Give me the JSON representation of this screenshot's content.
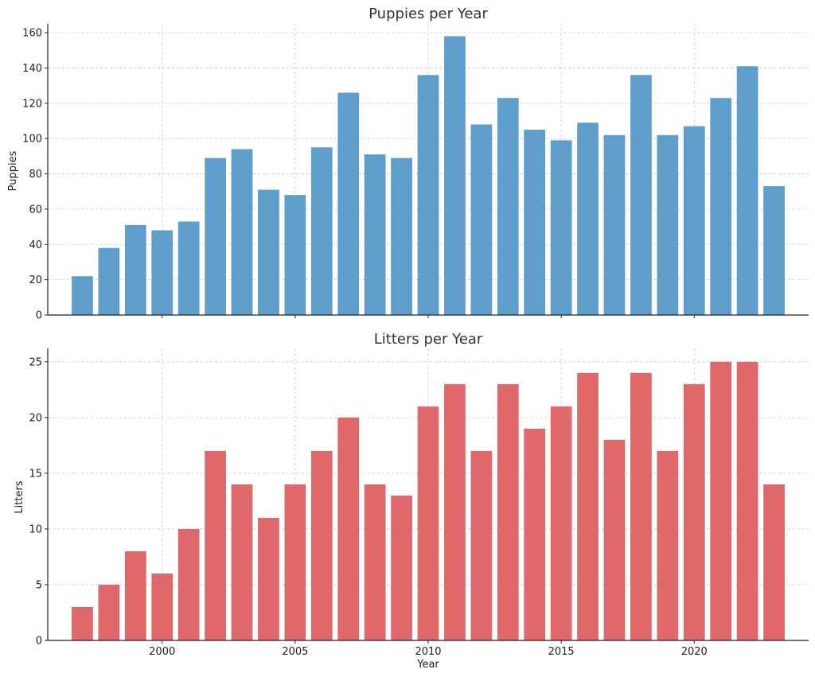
{
  "chart_data": [
    {
      "type": "bar",
      "title": "Puppies per Year",
      "xlabel": "",
      "ylabel": "Puppies",
      "ylim": [
        0,
        165
      ],
      "yticks": [
        0,
        20,
        40,
        60,
        80,
        100,
        120,
        140,
        160
      ],
      "xlim": [
        1995.7,
        2024.3
      ],
      "xticks": [
        2000,
        2005,
        2010,
        2015,
        2020
      ],
      "grid": true,
      "color": "#5f9ecb",
      "categories": [
        1997,
        1998,
        1999,
        2000,
        2001,
        2002,
        2003,
        2004,
        2005,
        2006,
        2007,
        2008,
        2009,
        2010,
        2011,
        2012,
        2013,
        2014,
        2015,
        2016,
        2017,
        2018,
        2019,
        2020,
        2021,
        2022,
        2023
      ],
      "values": [
        22,
        38,
        51,
        48,
        53,
        89,
        94,
        71,
        68,
        95,
        126,
        91,
        89,
        136,
        158,
        108,
        123,
        105,
        99,
        109,
        102,
        136,
        102,
        107,
        123,
        141,
        73
      ]
    },
    {
      "type": "bar",
      "title": "Litters per Year",
      "xlabel": "Year",
      "ylabel": "Litters",
      "ylim": [
        0,
        26.2
      ],
      "yticks": [
        0,
        5,
        10,
        15,
        20,
        25
      ],
      "xlim": [
        1995.7,
        2024.3
      ],
      "xticks": [
        2000,
        2005,
        2010,
        2015,
        2020
      ],
      "grid": true,
      "color": "#e0676a",
      "categories": [
        1997,
        1998,
        1999,
        2000,
        2001,
        2002,
        2003,
        2004,
        2005,
        2006,
        2007,
        2008,
        2009,
        2010,
        2011,
        2012,
        2013,
        2014,
        2015,
        2016,
        2017,
        2018,
        2019,
        2020,
        2021,
        2022,
        2023
      ],
      "values": [
        3,
        5,
        8,
        6,
        10,
        17,
        14,
        11,
        14,
        17,
        20,
        14,
        13,
        21,
        23,
        17,
        23,
        19,
        21,
        24,
        18,
        24,
        17,
        23,
        25,
        25,
        14
      ]
    }
  ]
}
